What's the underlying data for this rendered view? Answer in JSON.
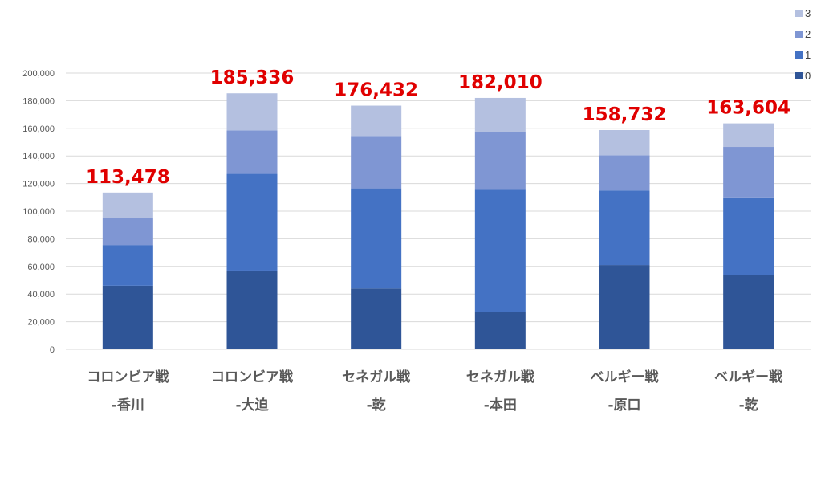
{
  "chart_data": {
    "type": "bar",
    "stacked": true,
    "title": "",
    "xlabel": "",
    "ylabel": "",
    "ylim": [
      0,
      200000
    ],
    "yticks": [
      0,
      20000,
      40000,
      60000,
      80000,
      100000,
      120000,
      140000,
      160000,
      180000,
      200000
    ],
    "ytick_labels": [
      "0",
      "20,000",
      "40,000",
      "60,000",
      "80,000",
      "100,000",
      "120,000",
      "140,000",
      "160,000",
      "180,000",
      "200,000"
    ],
    "grid": true,
    "legend": "top-right",
    "categories": [
      [
        "コロンビア戦",
        "-香川"
      ],
      [
        "コロンビア戦",
        "-大迫"
      ],
      [
        "セネガル戦",
        "-乾"
      ],
      [
        "セネガル戦",
        "-本田"
      ],
      [
        "ベルギー戦",
        "-原口"
      ],
      [
        "ベルギー戦",
        "-乾"
      ]
    ],
    "series": [
      {
        "name": "0",
        "color": "#2f5597",
        "values": [
          46000,
          57000,
          44000,
          27000,
          61000,
          53500
        ]
      },
      {
        "name": "1",
        "color": "#4472c4",
        "values": [
          29500,
          70000,
          72500,
          89000,
          54000,
          56500
        ]
      },
      {
        "name": "2",
        "color": "#7f96d3",
        "values": [
          19500,
          31500,
          38000,
          41500,
          25500,
          36500
        ]
      },
      {
        "name": "3",
        "color": "#b4c0e0",
        "values": [
          18478,
          26836,
          21932,
          24510,
          18232,
          17104
        ]
      }
    ],
    "totals": [
      113478,
      185336,
      176432,
      182010,
      158732,
      163604
    ],
    "total_labels": [
      "113,478",
      "185,336",
      "176,432",
      "182,010",
      "158,732",
      "163,604"
    ],
    "total_label_color": "#e00000"
  }
}
